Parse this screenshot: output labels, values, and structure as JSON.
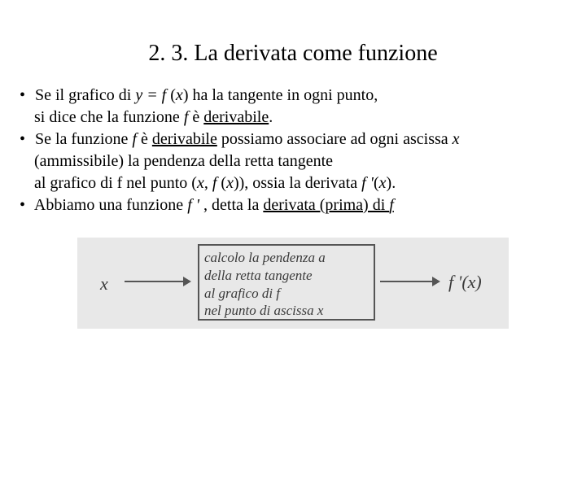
{
  "title": "2. 3. La derivata come funzione",
  "lines": {
    "l1a": "Se il grafico di ",
    "l1b": "y = f ",
    "l1c": "(",
    "l1d": "x",
    "l1e": ") ha la tangente in ogni punto,",
    "l2a": "si dice che la funzione ",
    "l2b": "f ",
    "l2c": " è ",
    "l2d": "derivabile",
    "l2e": ".",
    "l3a": "Se la funzione ",
    "l3b": "f ",
    "l3c": " è ",
    "l3d": "derivabile",
    "l3e": " possiamo associare ad ogni ascissa  ",
    "l3f": "x",
    "l4a": "(ammissibile) la pendenza della retta tangente",
    "l5a": "al grafico di f nel punto (",
    "l5b": "x",
    "l5c": ", ",
    "l5d": "f ",
    "l5e": "(",
    "l5f": "x",
    "l5g": ")), ossia la derivata ",
    "l5h": "f '",
    "l5i": "(",
    "l5j": "x",
    "l5k": ").",
    "l6a": "Abbiamo una funzione ",
    "l6b": "f ' ",
    "l6c": ", detta la ",
    "l6d": "derivata (prima) di ",
    "l6e": "f"
  },
  "figure": {
    "input": "x",
    "box_l1": "calcolo la pendenza a",
    "box_l2": "della retta tangente",
    "box_l3": "al grafico di f",
    "box_l4": "nel punto di ascissa x",
    "output": "f '(x)",
    "bg": "#e8e8e8",
    "border": "#555555",
    "text_color": "#3a3a3a"
  }
}
